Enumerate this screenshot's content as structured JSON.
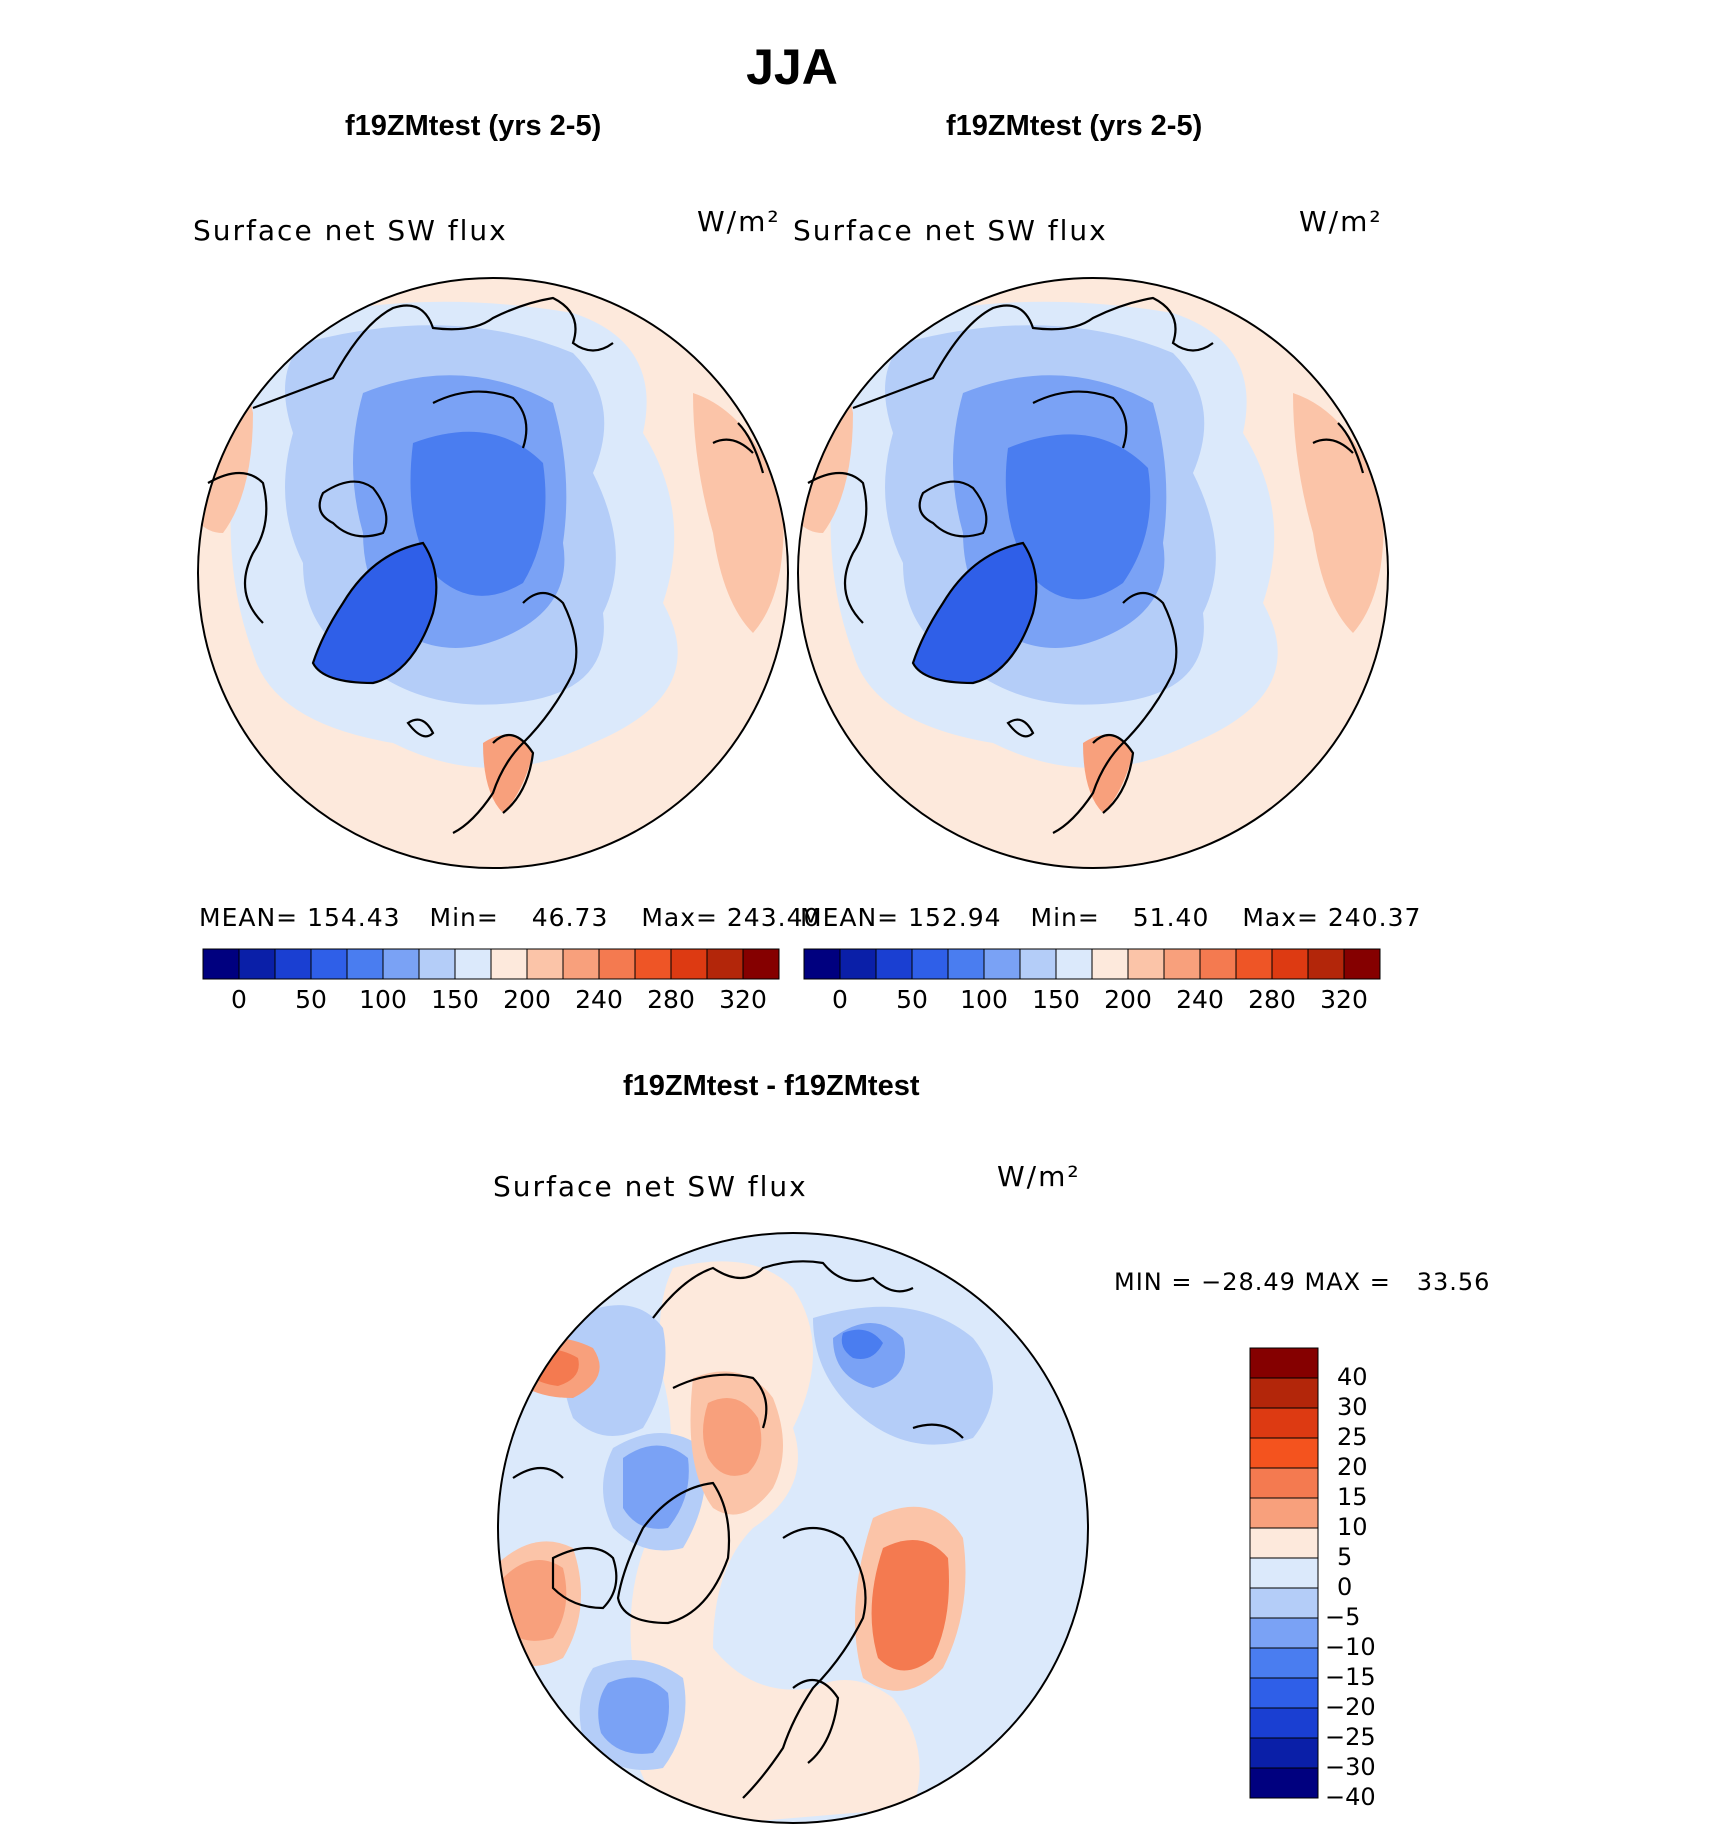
{
  "figure": {
    "season_title": "JJA"
  },
  "panels": [
    {
      "case_title": "f19ZMtest (yrs 2-5)",
      "variable": "Surface net SW flux",
      "units": "W/m²",
      "stats": {
        "mean_label": "MEAN=",
        "mean_value": "154.43",
        "min_label": "Min=",
        "min_value": "46.73",
        "max_label": "Max=",
        "max_value": "243.40"
      }
    },
    {
      "case_title": "f19ZMtest (yrs 2-5)",
      "variable": "Surface net SW flux",
      "units": "W/m²",
      "stats": {
        "mean_label": "MEAN=",
        "mean_value": "152.94",
        "min_label": "Min=",
        "min_value": "51.40",
        "max_label": "Max=",
        "max_value": "240.37"
      }
    }
  ],
  "difference_panel": {
    "title": "f19ZMtest - f19ZMtest",
    "variable": "Surface net SW flux",
    "units": "W/m²",
    "stats_text": "MIN = −28.49 MAX =   33.56"
  },
  "colorbar_main": {
    "tick_labels": [
      "0",
      "50",
      "100",
      "150",
      "200",
      "240",
      "280",
      "320"
    ],
    "colors": [
      "#00007f",
      "#0a1fa8",
      "#1a3fd2",
      "#2f5fe8",
      "#4a7df0",
      "#7aa2f5",
      "#b4cdf8",
      "#dbe9fb",
      "#fde9dc",
      "#fbc4a8",
      "#f8a07c",
      "#f47a50",
      "#ee5526",
      "#dd3a12",
      "#b3260a",
      "#850000"
    ]
  },
  "colorbar_diff": {
    "tick_labels": [
      "40",
      "30",
      "25",
      "20",
      "15",
      "10",
      "5",
      "0",
      "−5",
      "−10",
      "−15",
      "−20",
      "−25",
      "−30",
      "−40"
    ],
    "colors": [
      "#850000",
      "#b3260a",
      "#dd3a12",
      "#f4531e",
      "#f47a50",
      "#f8a07c",
      "#fde9dc",
      "#dbe9fb",
      "#b4cdf8",
      "#7aa2f5",
      "#4a7df0",
      "#2f5fe8",
      "#1a3fd2",
      "#0a1fa8",
      "#00007f"
    ]
  },
  "map_colors": {
    "deep_blue": "#2f5fe8",
    "mid_blue": "#4a7df0",
    "light_blue": "#7aa2f5",
    "pale_blue": "#b4cdf8",
    "very_pale_blue": "#dbe9fb",
    "pale_orange": "#fde9dc",
    "light_orange": "#fbc4a8",
    "orange": "#f8a07c",
    "red_orange": "#f47a50",
    "red": "#ee5526"
  }
}
